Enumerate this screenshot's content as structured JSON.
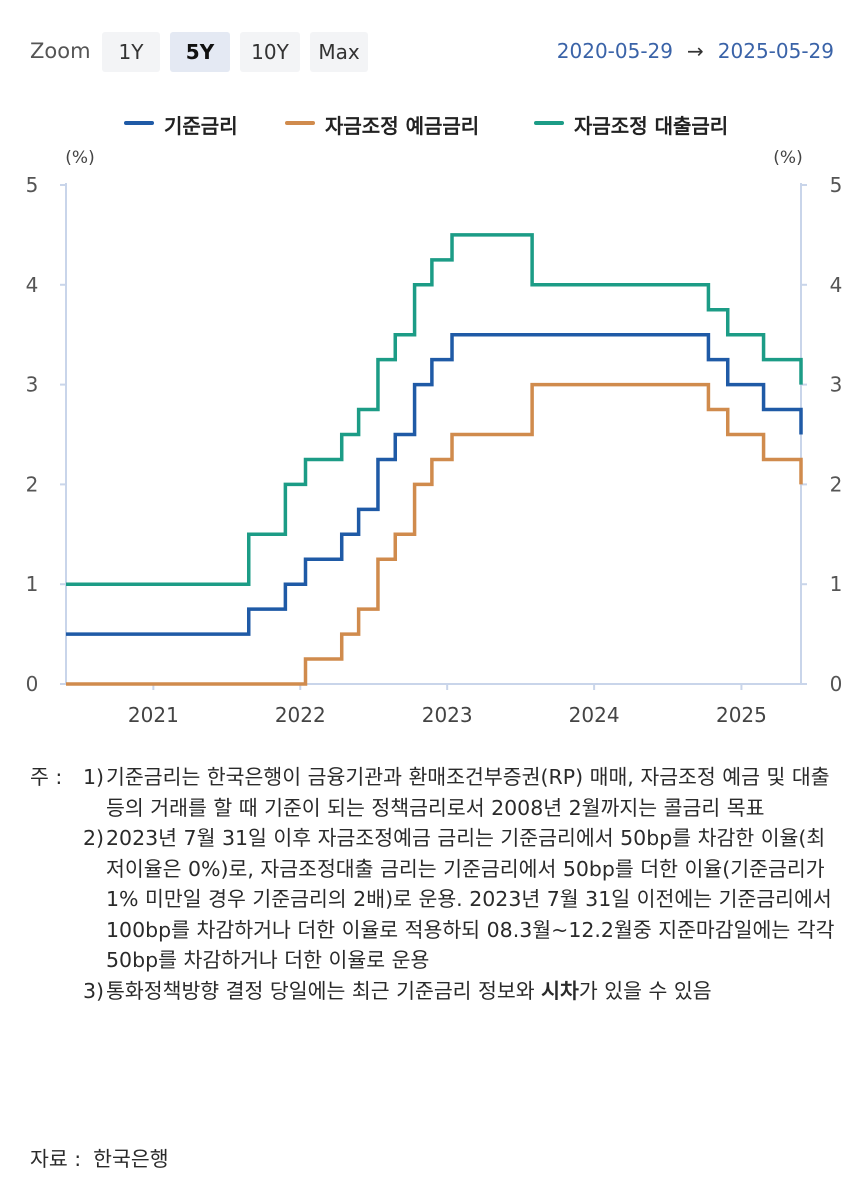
{
  "toolbar": {
    "zoom_label": "Zoom",
    "buttons": [
      "1Y",
      "5Y",
      "10Y",
      "Max"
    ],
    "active": "5Y",
    "range_start": "2020-05-29",
    "range_arrow": "→",
    "range_end": "2025-05-29"
  },
  "chart_data": {
    "type": "line",
    "step": true,
    "unit_left": "(%)",
    "unit_right": "(%)",
    "ylim": [
      0,
      5
    ],
    "yticks": [
      "0",
      "1",
      "2",
      "3",
      "4",
      "5"
    ],
    "xlim": [
      "2020-05-29",
      "2025-05-29"
    ],
    "xticks": [
      "2021",
      "2022",
      "2023",
      "2024",
      "2025"
    ],
    "grid": false,
    "legend_position": "top-center",
    "series": [
      {
        "name": "기준금리",
        "color": "#1f5aa6",
        "points": [
          [
            "2020-05-29",
            0.5
          ],
          [
            "2021-08-26",
            0.75
          ],
          [
            "2021-11-25",
            1.0
          ],
          [
            "2022-01-14",
            1.25
          ],
          [
            "2022-04-14",
            1.5
          ],
          [
            "2022-05-26",
            1.75
          ],
          [
            "2022-07-13",
            2.25
          ],
          [
            "2022-08-25",
            2.5
          ],
          [
            "2022-10-12",
            3.0
          ],
          [
            "2022-11-24",
            3.25
          ],
          [
            "2023-01-13",
            3.5
          ],
          [
            "2024-10-11",
            3.25
          ],
          [
            "2024-11-28",
            3.0
          ],
          [
            "2025-02-25",
            2.75
          ],
          [
            "2025-05-29",
            2.5
          ]
        ]
      },
      {
        "name": "자금조정 예금금리",
        "color": "#d08b4d",
        "points": [
          [
            "2020-05-29",
            0.0
          ],
          [
            "2022-01-14",
            0.25
          ],
          [
            "2022-04-14",
            0.5
          ],
          [
            "2022-05-26",
            0.75
          ],
          [
            "2022-07-13",
            1.25
          ],
          [
            "2022-08-25",
            1.5
          ],
          [
            "2022-10-12",
            2.0
          ],
          [
            "2022-11-24",
            2.25
          ],
          [
            "2023-01-13",
            2.5
          ],
          [
            "2023-07-31",
            3.0
          ],
          [
            "2024-10-11",
            2.75
          ],
          [
            "2024-11-28",
            2.5
          ],
          [
            "2025-02-25",
            2.25
          ],
          [
            "2025-05-29",
            2.0
          ]
        ]
      },
      {
        "name": "자금조정 대출금리",
        "color": "#1c9c86",
        "points": [
          [
            "2020-05-29",
            1.0
          ],
          [
            "2021-08-26",
            1.5
          ],
          [
            "2021-11-25",
            2.0
          ],
          [
            "2022-01-14",
            2.25
          ],
          [
            "2022-04-14",
            2.5
          ],
          [
            "2022-05-26",
            2.75
          ],
          [
            "2022-07-13",
            3.25
          ],
          [
            "2022-08-25",
            3.5
          ],
          [
            "2022-10-12",
            4.0
          ],
          [
            "2022-11-24",
            4.25
          ],
          [
            "2023-01-13",
            4.5
          ],
          [
            "2023-07-31",
            4.0
          ],
          [
            "2024-10-11",
            3.75
          ],
          [
            "2024-11-28",
            3.5
          ],
          [
            "2025-02-25",
            3.25
          ],
          [
            "2025-05-29",
            3.0
          ]
        ]
      }
    ]
  },
  "notes": {
    "prefix": "주 :",
    "items": [
      {
        "num": "1)",
        "text": "기준금리는 한국은행이 금융기관과 환매조건부증권(RP) 매매, 자금조정 예금 및 대출 등의 거래를 할 때 기준이 되는 정책금리로서 2008년 2월까지는 콜금리 목표"
      },
      {
        "num": "2)",
        "text": "2023년 7월 31일 이후 자금조정예금 금리는 기준금리에서 50bp를 차감한 이율(최저이율은 0%)로, 자금조정대출 금리는 기준금리에서 50bp를 더한 이율(기준금리가 1% 미만일 경우 기준금리의 2배)로 운용. 2023년 7월 31일 이전에는 기준금리에서 100bp를 차감하거나 더한 이율로 적용하되 08.3월~12.2월중 지준마감일에는 각각 50bp를 차감하거나 더한 이율로 운용"
      },
      {
        "num": "3)",
        "text_before": "통화정책방향 결정 당일에는 최근 기준금리 정보와 ",
        "text_bold": "시차",
        "text_after": "가 있을 수 있음"
      }
    ]
  },
  "source": {
    "label": "자료 :",
    "value": "한국은행"
  }
}
